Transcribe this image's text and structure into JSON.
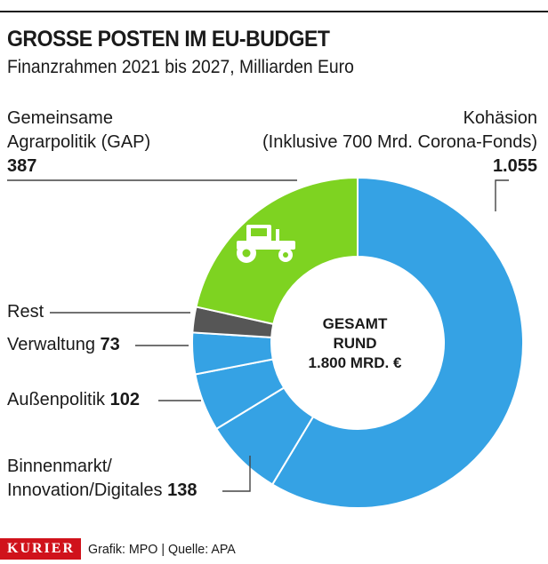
{
  "title": "GROSSE POSTEN IM EU-BUDGET",
  "subtitle": "Finanzrahmen 2021 bis 2027, Milliarden Euro",
  "center": {
    "line1": "GESAMT",
    "line2": "RUND",
    "line3": "1.800 MRD. €"
  },
  "labels": {
    "gap": {
      "line1": "Gemeinsame",
      "line2": "Agrarpolitik (GAP)",
      "value": "387"
    },
    "kohaesion": {
      "line1": "Kohäsion",
      "line2": "(Inklusive 700 Mrd. Corona-Fonds)",
      "value": "1.055"
    },
    "rest": {
      "name": "Rest"
    },
    "verwaltung": {
      "name": "Verwaltung",
      "value": "73"
    },
    "aussen": {
      "name": "Außenpolitik",
      "value": "102"
    },
    "binnen": {
      "line1": "Binnenmarkt/",
      "line2": "Innovation/Digitales",
      "value": "138"
    }
  },
  "footer": {
    "brand": "KURIER",
    "credit": "Grafik: MPO | Quelle: APA"
  },
  "chart_data": {
    "type": "pie",
    "slices": [
      {
        "label": "Kohäsion",
        "value": 1055,
        "color": "#35a2e4"
      },
      {
        "label": "Binnenmarkt/Innovation/Digitales",
        "value": 138,
        "color": "#35a2e4"
      },
      {
        "label": "Außenpolitik",
        "value": 102,
        "color": "#35a2e4"
      },
      {
        "label": "Verwaltung",
        "value": 73,
        "color": "#35a2e4"
      },
      {
        "label": "Rest",
        "value": 45,
        "color": "#565656"
      },
      {
        "label": "Gemeinsame Agrarpolitik (GAP)",
        "value": 387,
        "color": "#7ed321"
      }
    ],
    "total_label": "1.800 MRD. €"
  }
}
